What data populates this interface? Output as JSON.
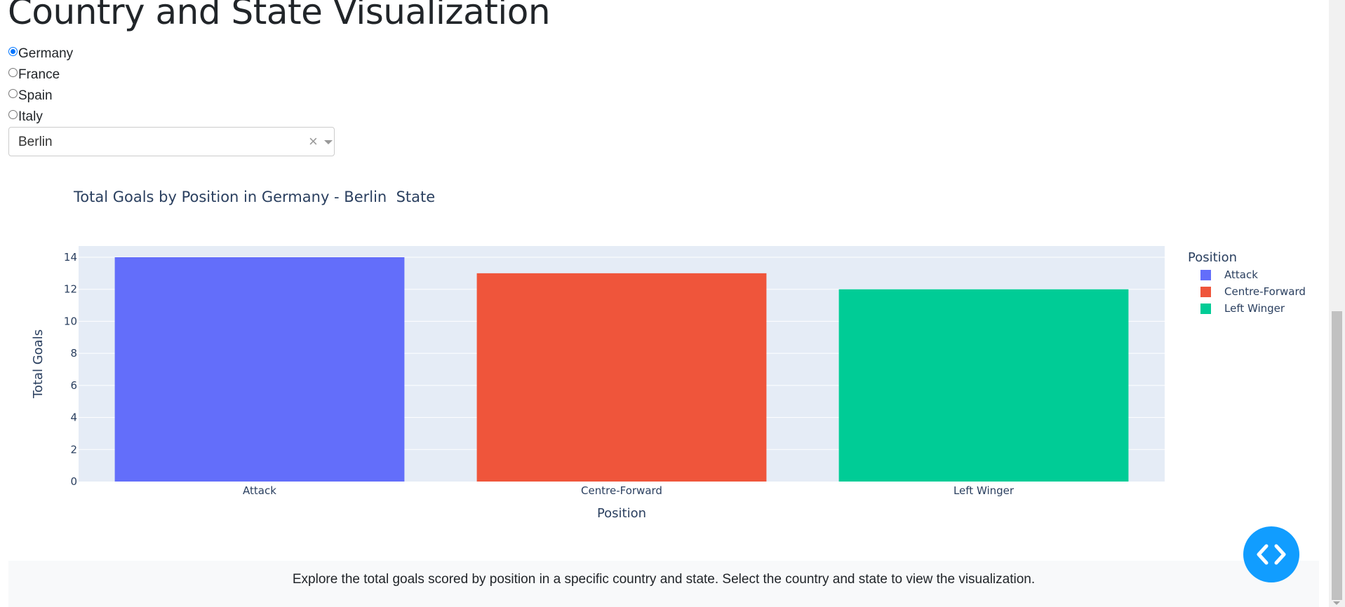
{
  "page": {
    "title": "Country and State Visualization",
    "footer_text": "Explore the total goals scored by position in a specific country and state. Select the country and state to view the visualization."
  },
  "country_selector": {
    "options": [
      "Germany",
      "France",
      "Spain",
      "Italy"
    ],
    "selected": "Germany"
  },
  "state_dropdown": {
    "value": "Berlin",
    "clear_symbol": "×"
  },
  "colors": {
    "plot_bg": "#e5ecf6",
    "accent": "#119dff",
    "radio": "#0075ff"
  },
  "chart_data": {
    "type": "bar",
    "title": "Total Goals by Position in Germany - Berlin  State",
    "xlabel": "Position",
    "ylabel": "Total Goals",
    "categories": [
      "Attack",
      "Centre-Forward",
      "Left Winger"
    ],
    "values": [
      14,
      13,
      12
    ],
    "colors": [
      "#636efa",
      "#ef553b",
      "#00cc96"
    ],
    "ylim": [
      0,
      14.7
    ],
    "yticks": [
      0,
      2,
      4,
      6,
      8,
      10,
      12,
      14
    ],
    "grid": true,
    "legend": {
      "title": "Position",
      "placement": "right",
      "entries": [
        "Attack",
        "Centre-Forward",
        "Left Winger"
      ]
    }
  }
}
